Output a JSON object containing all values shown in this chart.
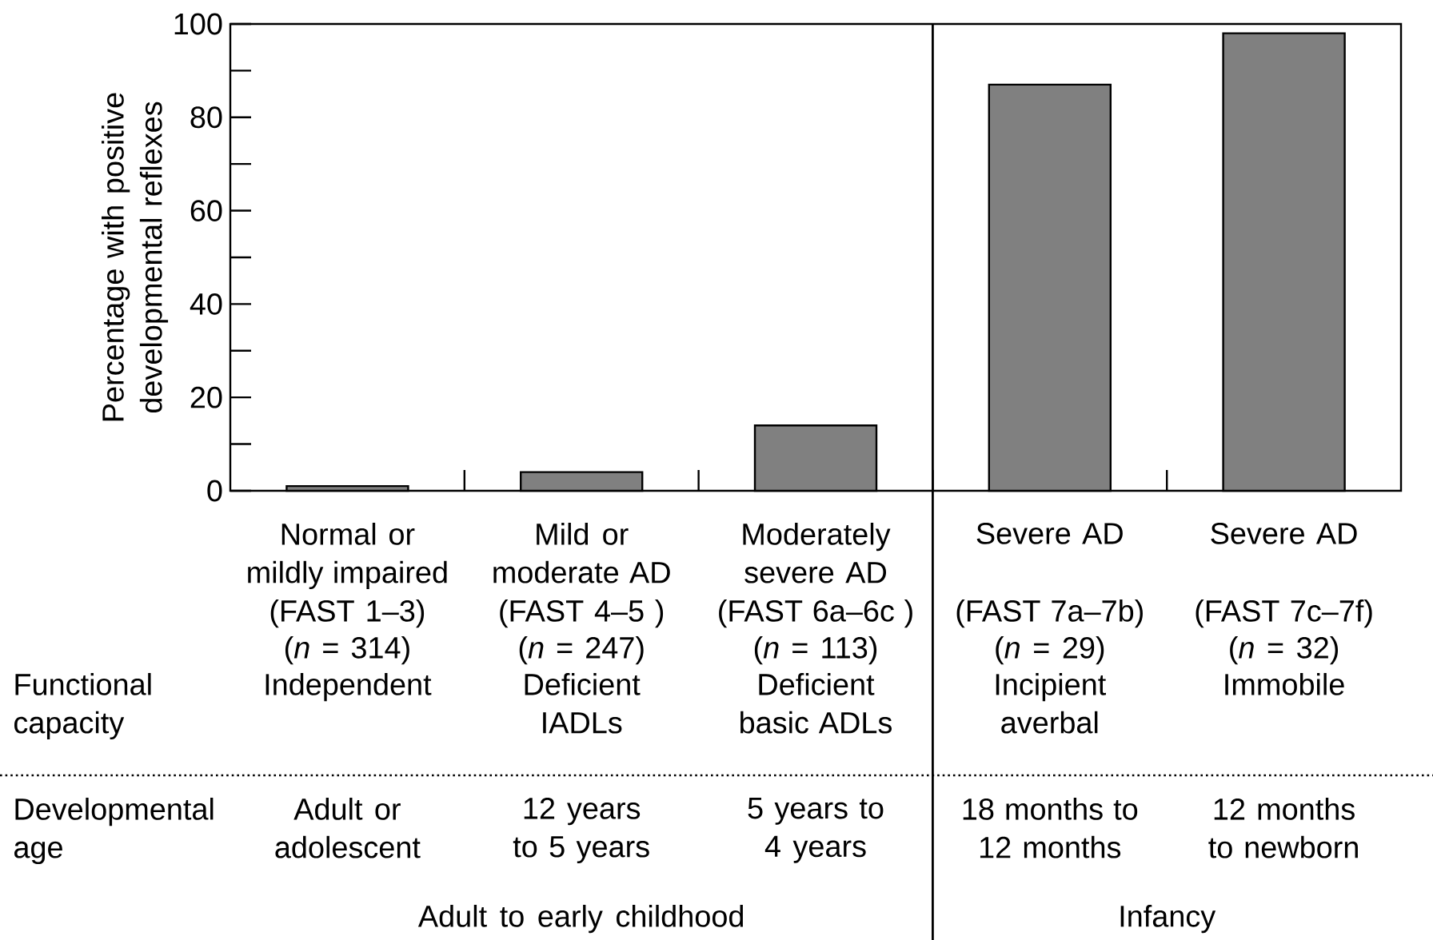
{
  "chart_data": {
    "type": "bar",
    "ylabel": "Percentage with positive developmental reflexes",
    "categories": [
      "Normal or mildly impaired",
      "Mild or moderate AD",
      "Moderately severe AD",
      "Severe AD",
      "Severe AD"
    ],
    "values": [
      1,
      4,
      14,
      87,
      98
    ],
    "color": "#808080",
    "ylim": [
      0,
      100
    ],
    "yticks": [
      0,
      {
        "value": 10,
        "label": null
      },
      20,
      {
        "value": 30,
        "label": null
      },
      40,
      {
        "value": 50,
        "label": null
      },
      60,
      {
        "value": 70,
        "label": null
      },
      80,
      {
        "value": 90,
        "label": null
      },
      100
    ],
    "annotations": [
      "(FAST 1–3)",
      "(FAST 4–5 )",
      "(FAST 6a–6c )",
      "(FAST 7a–7b)",
      "(FAST 7c–7f)",
      "(*n* = 314)",
      "(*n* = 247)",
      "(*n* = 113)",
      "(*n* = 29)",
      "(*n* = 32)",
      "Functional capacity",
      "Independent",
      "Deficient IADLs",
      "Deficient basic ADLs",
      "Incipient averbal",
      "Immobile",
      "Developmental age",
      "Adult or adolescent",
      "12 years to 5 years",
      "5 years to 4 years",
      "18 months to 12 months",
      "12 months to newborn",
      "Adult to early childhood",
      "Infancy"
    ]
  }
}
